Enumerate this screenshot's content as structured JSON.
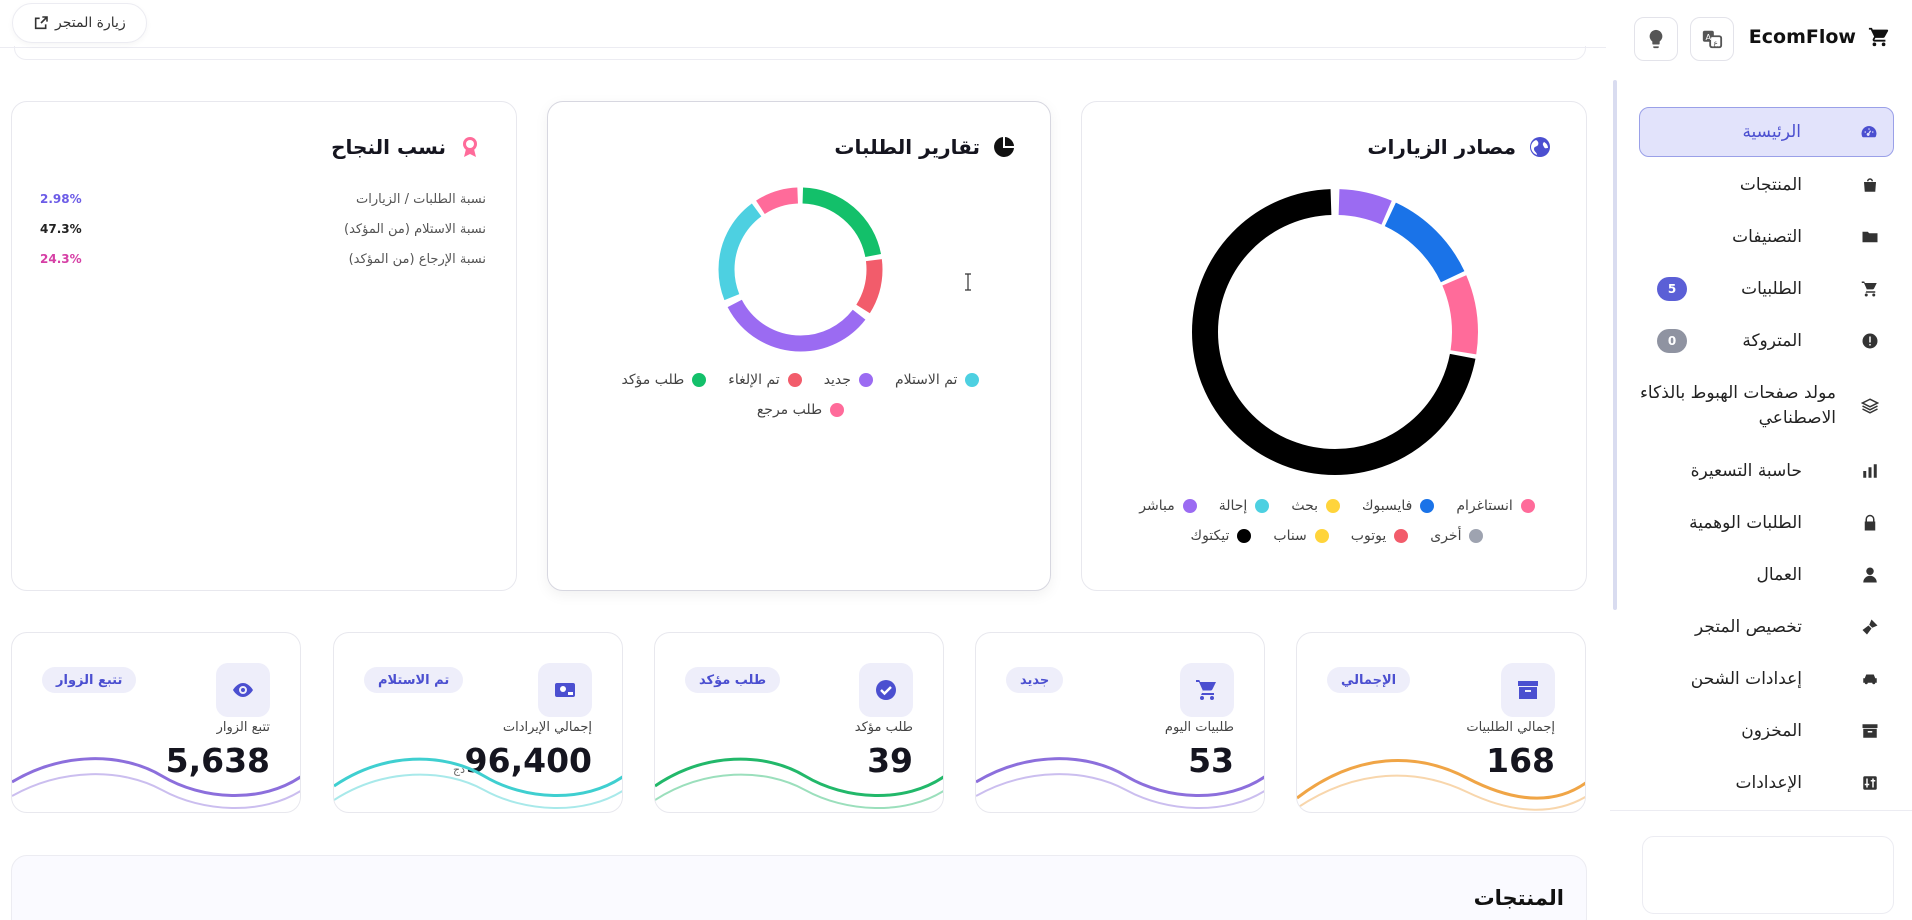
{
  "brand": {
    "name": "EcomFlow"
  },
  "topbar": {
    "visit_store": "زيارة المتجر"
  },
  "sidebar": {
    "items": [
      {
        "label": "الرئيسية",
        "icon": "dashboard-icon",
        "active": true
      },
      {
        "label": "المنتجات",
        "icon": "shopping-bag-icon"
      },
      {
        "label": "التصنيفات",
        "icon": "folder-icon"
      },
      {
        "label": "الطلبيات",
        "icon": "cart-icon",
        "badge": "5"
      },
      {
        "label": "المتروكة",
        "icon": "alert-icon",
        "badge": "0"
      },
      {
        "label": "مولد صفحات الهبوط بالذكاء الاصطناعي",
        "icon": "layers-icon"
      },
      {
        "label": "حاسبة التسعيرة",
        "icon": "bar-chart-icon"
      },
      {
        "label": "الطلبات الوهمية",
        "icon": "lock-icon"
      },
      {
        "label": "العمال",
        "icon": "user-icon"
      },
      {
        "label": "تخصيص المتجر",
        "icon": "brush-icon"
      },
      {
        "label": "إعدادات الشحن",
        "icon": "car-icon"
      },
      {
        "label": "المخزون",
        "icon": "archive-icon"
      },
      {
        "label": "الإعدادات",
        "icon": "settings-icon"
      }
    ]
  },
  "traffic_sources": {
    "title": "مصادر الزيارات",
    "legend": [
      "انستاغرام",
      "فايسبوك",
      "بحث",
      "إحالة",
      "مباشر",
      "أخرى",
      "يوتوب",
      "سناب",
      "تيكتوك"
    ],
    "colors": [
      "#ff6b9a",
      "#1a73e8",
      "#ffd43b",
      "#4dd0e1",
      "#9b6bf2",
      "#9ea3b0",
      "#f25c6b",
      "#ffd43b",
      "#000000"
    ]
  },
  "orders_report": {
    "title": "تقارير الطلبات",
    "legend": [
      "تم الاستلام",
      "جديد",
      "تم الإلغاء",
      "طلب مؤكد",
      "طلب مرجع"
    ],
    "colors": [
      "#4dd0e1",
      "#9b6bf2",
      "#f25c6b",
      "#13c06a",
      "#ff6b9a"
    ]
  },
  "success_rates": {
    "title": "نسب النجاح",
    "rows": [
      {
        "label": "نسبة الطلبات / الزيارات",
        "value": "2.98%",
        "color": "#6c5ce7"
      },
      {
        "label": "نسبة الاستلام (من المؤكد)",
        "value": "47.3%",
        "color": "#222222"
      },
      {
        "label": "نسبة الإرجاع (من المؤكد)",
        "value": "24.3%",
        "color": "#d63fa5"
      }
    ]
  },
  "stats": [
    {
      "label": "إجمالي الطلبيات",
      "value": "168",
      "tag": "الإجمالي",
      "icon": "archive-icon",
      "wave": "#f0a546"
    },
    {
      "label": "طلبيات اليوم",
      "value": "53",
      "tag": "جديد",
      "icon": "cart-icon",
      "wave": "#8c6fdc"
    },
    {
      "label": "طلب مؤكد",
      "value": "39",
      "tag": "طلب مؤكد",
      "icon": "check-circle-icon",
      "wave": "#22b86a"
    },
    {
      "label": "إجمالي الإيرادات",
      "value": "96,400",
      "currency": "دج",
      "tag": "تم الاستلام",
      "icon": "money-icon",
      "wave": "#3fcfd0"
    },
    {
      "label": "تتبع الزوار",
      "value": "5,638",
      "tag": "تتبع الزوار",
      "icon": "eye-icon",
      "wave": "#8c6fdc"
    }
  ],
  "products": {
    "title": "المنتجات"
  }
}
